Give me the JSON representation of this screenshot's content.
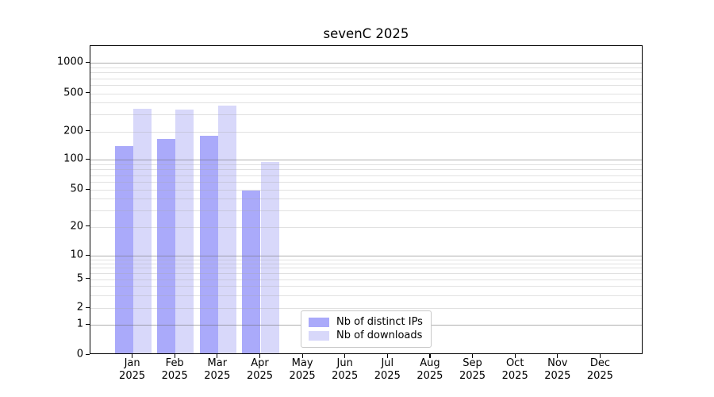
{
  "chart_data": {
    "type": "bar",
    "title": "sevenC 2025",
    "categories": [
      "Jan",
      "Feb",
      "Mar",
      "Apr",
      "May",
      "Jun",
      "Jul",
      "Aug",
      "Sep",
      "Oct",
      "Nov",
      "Dec"
    ],
    "x_year_label": "2025",
    "series": [
      {
        "name": "Nb of distinct IPs",
        "color": "#aaaafa",
        "values": [
          135,
          159,
          174,
          47,
          0,
          0,
          0,
          0,
          0,
          0,
          0,
          0
        ]
      },
      {
        "name": "Nb of downloads",
        "color": "#d8d8fa",
        "values": [
          333,
          325,
          356,
          91,
          0,
          0,
          0,
          0,
          0,
          0,
          0,
          0
        ]
      }
    ],
    "yticks": [
      0,
      1,
      2,
      5,
      10,
      20,
      50,
      100,
      200,
      500,
      1000
    ],
    "yscale": "symlog",
    "ylim": [
      0,
      1459
    ],
    "grid": true,
    "legend_position": "lower-center",
    "axis_color": "#000000",
    "grid_major_color": "#b0b0b0",
    "grid_minor_color": "#e4e4e4"
  }
}
